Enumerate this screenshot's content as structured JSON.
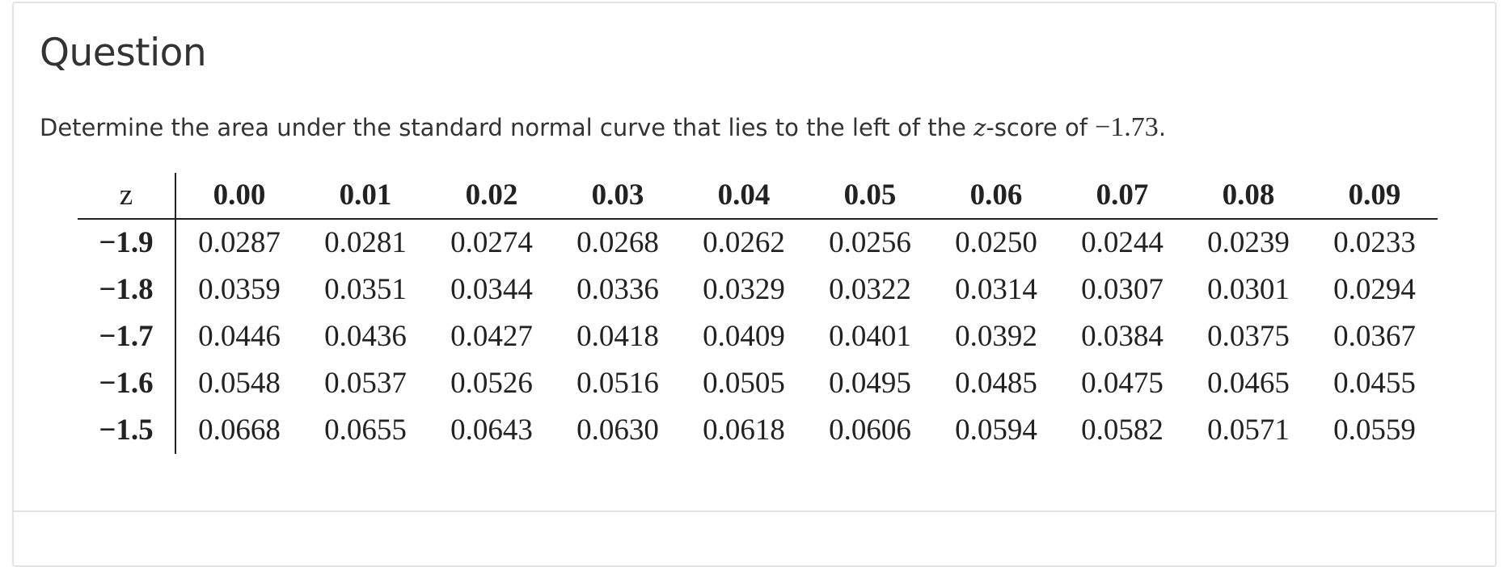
{
  "question": {
    "heading": "Question",
    "prompt_before": "Determine the area under the standard normal curve that lies to the left of the ",
    "prompt_var": "z",
    "prompt_mid": "-score of ",
    "prompt_value": "−1.73",
    "prompt_after": "."
  },
  "ztable": {
    "z_header": "z",
    "columns": [
      "0.00",
      "0.01",
      "0.02",
      "0.03",
      "0.04",
      "0.05",
      "0.06",
      "0.07",
      "0.08",
      "0.09"
    ],
    "rows": [
      {
        "z": "−1.9",
        "values": [
          "0.0287",
          "0.0281",
          "0.0274",
          "0.0268",
          "0.0262",
          "0.0256",
          "0.0250",
          "0.0244",
          "0.0239",
          "0.0233"
        ]
      },
      {
        "z": "−1.8",
        "values": [
          "0.0359",
          "0.0351",
          "0.0344",
          "0.0336",
          "0.0329",
          "0.0322",
          "0.0314",
          "0.0307",
          "0.0301",
          "0.0294"
        ]
      },
      {
        "z": "−1.7",
        "values": [
          "0.0446",
          "0.0436",
          "0.0427",
          "0.0418",
          "0.0409",
          "0.0401",
          "0.0392",
          "0.0384",
          "0.0375",
          "0.0367"
        ]
      },
      {
        "z": "−1.6",
        "values": [
          "0.0548",
          "0.0537",
          "0.0526",
          "0.0516",
          "0.0505",
          "0.0495",
          "0.0485",
          "0.0475",
          "0.0465",
          "0.0455"
        ]
      },
      {
        "z": "−1.5",
        "values": [
          "0.0668",
          "0.0655",
          "0.0643",
          "0.0630",
          "0.0618",
          "0.0606",
          "0.0594",
          "0.0582",
          "0.0571",
          "0.0559"
        ]
      }
    ]
  }
}
